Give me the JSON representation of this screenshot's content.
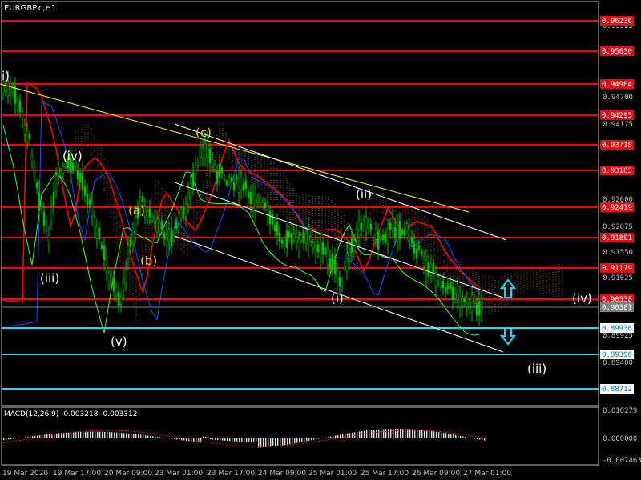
{
  "window": {
    "title": "EURGBP.c,H1"
  },
  "colors": {
    "background": "#000000",
    "candle": "#00c000",
    "resistance": "#ff0000",
    "support": "#00e5ff",
    "price_tag": "#dd1111",
    "current_tag": "#808080",
    "axis": "#c0c0c0",
    "trendline": "#ffffff",
    "fast_ma": "#ffff00",
    "ma_red": "#ff0000",
    "ma_blue": "#2050ff",
    "wave_white": "#ffffff",
    "wave_yellow": "#ffcc00",
    "arrow": "#00e5ff",
    "macd": "#ffffff",
    "signal": "#ff0000"
  },
  "price_axis": {
    "ticks": [
      "0.95525",
      "0.94700",
      "0.94175",
      "0.92600",
      "0.92075",
      "0.91550",
      "0.91025",
      "0.89925",
      "0.89400"
    ]
  },
  "horizontal_levels": [
    {
      "label": "0.96236",
      "kind": "resistance"
    },
    {
      "label": "0.95830",
      "kind": "resistance"
    },
    {
      "label": "0.94904",
      "kind": "resistance"
    },
    {
      "label": "0.94295",
      "kind": "resistance"
    },
    {
      "label": "0.93718",
      "kind": "resistance"
    },
    {
      "label": "0.93183",
      "kind": "resistance"
    },
    {
      "label": "0.92419",
      "kind": "resistance"
    },
    {
      "label": "0.91801",
      "kind": "resistance"
    },
    {
      "label": "0.91179",
      "kind": "resistance"
    },
    {
      "label": "0.90538",
      "kind": "resistance"
    },
    {
      "label": "0.89936",
      "kind": "support"
    },
    {
      "label": "0.89396",
      "kind": "support"
    },
    {
      "label": "0.88712",
      "kind": "support"
    }
  ],
  "current_price": "0.90381",
  "wave_labels": [
    {
      "text": "i)",
      "color": "white"
    },
    {
      "text": "(iv)",
      "color": "white"
    },
    {
      "text": "(c)",
      "color": "yellow"
    },
    {
      "text": "(a)",
      "color": "yellow"
    },
    {
      "text": "(b)",
      "color": "yellow"
    },
    {
      "text": "(iii)",
      "color": "white"
    },
    {
      "text": "(v)",
      "color": "white"
    },
    {
      "text": "(ii)",
      "color": "white"
    },
    {
      "text": "(i)",
      "color": "white"
    },
    {
      "text": "(iv)",
      "color": "white"
    },
    {
      "text": "(iii)",
      "color": "white"
    }
  ],
  "time_axis": {
    "labels": [
      "19 Mar 2020",
      "19 Mar 17:00",
      "20 Mar 09:00",
      "23 Mar 01:00",
      "23 Mar 17:00",
      "24 Mar 09:00",
      "25 Mar 01:00",
      "25 Mar 17:00",
      "26 Mar 09:00",
      "27 Mar 01:00"
    ]
  },
  "indicator": {
    "title": "MACD(12,26,9) -0.003218 -0.003312",
    "ticks": [
      "0.010279",
      "0.000000",
      "-0.007463"
    ]
  },
  "arrows": [
    {
      "direction": "up",
      "icon": "up-arrow-icon"
    },
    {
      "direction": "down",
      "icon": "down-arrow-icon"
    }
  ]
}
